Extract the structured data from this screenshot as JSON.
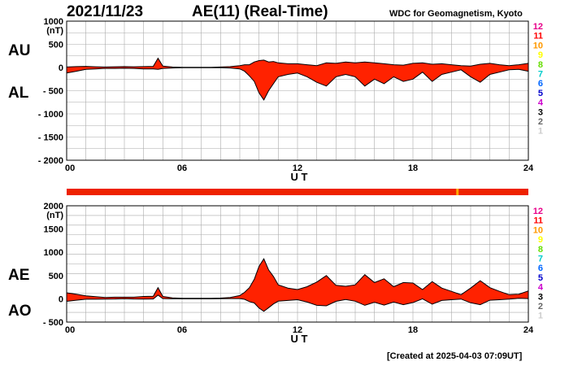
{
  "header": {
    "date": "2021/11/23",
    "title": "AE(11) (Real-Time)",
    "source": "WDC for Geomagnetism, Kyoto",
    "footer": "[Created at 2025-04-03 07:09UT]"
  },
  "chart_data": [
    {
      "type": "area",
      "panel": "AU/AL",
      "ylabel": "(nT)",
      "xlabel": "U T",
      "ylim": [
        -2000,
        1000
      ],
      "yticks": [
        "1000",
        "500",
        "0",
        "- 500",
        "- 1000",
        "- 1500",
        "- 2000"
      ],
      "xlim": [
        0,
        24
      ],
      "xticks": [
        "00",
        "06",
        "12",
        "18",
        "24"
      ],
      "grid": true,
      "series_labels": [
        "AU",
        "AL"
      ],
      "x": [
        0,
        0.5,
        1,
        1.5,
        2,
        2.5,
        3,
        3.5,
        4,
        4.5,
        4.75,
        5,
        5.5,
        6,
        6.5,
        7,
        7.5,
        8,
        8.5,
        9,
        9.25,
        9.5,
        9.75,
        10,
        10.25,
        10.5,
        10.75,
        11,
        11.5,
        12,
        12.5,
        13,
        13.5,
        14,
        14.5,
        15,
        15.5,
        16,
        16.5,
        17,
        17.5,
        18,
        18.5,
        19,
        19.5,
        20,
        20.5,
        21,
        21.5,
        22,
        22.5,
        23,
        23.5,
        24
      ],
      "series": [
        {
          "name": "AU",
          "values": [
            10,
            20,
            25,
            15,
            10,
            15,
            20,
            15,
            20,
            25,
            200,
            30,
            10,
            5,
            5,
            5,
            5,
            10,
            20,
            40,
            60,
            60,
            120,
            150,
            160,
            120,
            130,
            100,
            80,
            80,
            60,
            40,
            100,
            90,
            120,
            100,
            120,
            100,
            80,
            60,
            50,
            90,
            100,
            70,
            80,
            60,
            40,
            30,
            70,
            90,
            60,
            40,
            60,
            90
          ]
        },
        {
          "name": "AL",
          "values": [
            -120,
            -80,
            -40,
            -30,
            -20,
            -20,
            -15,
            -20,
            -30,
            -30,
            -40,
            -20,
            -10,
            -5,
            -5,
            -5,
            -5,
            -5,
            -10,
            -30,
            -80,
            -180,
            -300,
            -550,
            -700,
            -500,
            -350,
            -200,
            -150,
            -120,
            -200,
            -320,
            -400,
            -200,
            -150,
            -200,
            -400,
            -250,
            -350,
            -200,
            -300,
            -250,
            -100,
            -300,
            -150,
            -100,
            -50,
            -200,
            -320,
            -150,
            -100,
            -50,
            -40,
            -80
          ]
        }
      ]
    },
    {
      "type": "area",
      "panel": "AE/AO",
      "ylabel": "(nT)",
      "xlabel": "U T",
      "ylim": [
        -500,
        2000
      ],
      "yticks": [
        "2000",
        "1500",
        "1000",
        "500",
        "0",
        "- 500"
      ],
      "xlim": [
        0,
        24
      ],
      "xticks": [
        "00",
        "06",
        "12",
        "18",
        "24"
      ],
      "grid": true,
      "series_labels": [
        "AE",
        "AO"
      ],
      "bar_status": "data availability bar",
      "series": [
        {
          "name": "AE",
          "values": [
            130,
            100,
            65,
            45,
            30,
            35,
            35,
            35,
            50,
            55,
            240,
            50,
            20,
            10,
            10,
            10,
            10,
            15,
            30,
            70,
            140,
            240,
            420,
            700,
            860,
            620,
            480,
            300,
            230,
            200,
            260,
            360,
            500,
            290,
            270,
            300,
            520,
            350,
            430,
            260,
            350,
            340,
            200,
            370,
            230,
            160,
            90,
            230,
            390,
            240,
            160,
            90,
            100,
            170
          ]
        },
        {
          "name": "AO",
          "values": [
            -55,
            -30,
            -8,
            -8,
            -5,
            -3,
            3,
            -3,
            -5,
            -3,
            80,
            5,
            0,
            0,
            0,
            0,
            0,
            3,
            5,
            5,
            -10,
            -60,
            -90,
            -200,
            -270,
            -190,
            -110,
            -50,
            -35,
            -20,
            -70,
            -140,
            -150,
            -55,
            -15,
            -50,
            -140,
            -75,
            -135,
            -70,
            -125,
            -80,
            0,
            -115,
            -35,
            -20,
            -5,
            -85,
            -125,
            -30,
            -20,
            -5,
            10,
            5
          ]
        }
      ]
    }
  ],
  "legend": {
    "numbers": [
      "12",
      "11",
      "10",
      "9",
      "8",
      "7",
      "6",
      "5",
      "4",
      "3",
      "2",
      "1"
    ],
    "colors": [
      "#e8008a",
      "#ff0000",
      "#ff9900",
      "#ffff00",
      "#66dd00",
      "#00cccc",
      "#0066ff",
      "#0000cc",
      "#cc00cc",
      "#000000",
      "#666666",
      "#cccccc"
    ]
  },
  "colors": {
    "fill": "#ff2200",
    "line": "#000000",
    "grid": "#aaaaaa",
    "bar": "#ee2200",
    "bar_mark": "#ffaa00"
  }
}
